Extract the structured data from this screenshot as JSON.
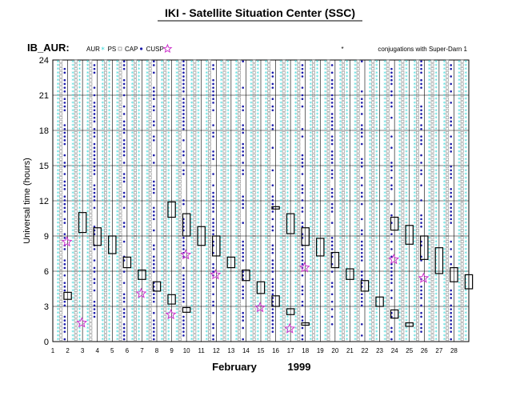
{
  "page_title": "IKI - Satellite Situation Center (SSC)",
  "panel_label": "IB_AUR:",
  "legend": {
    "items": [
      {
        "label": "AUR",
        "marker": "*",
        "color": "#33d6d6"
      },
      {
        "label": "PS",
        "marker": "square",
        "color": "#999999"
      },
      {
        "label": "CAP",
        "marker": "dot",
        "color": "#1a1aaa"
      },
      {
        "label": "CUSP",
        "marker": "star",
        "color": "#cc33cc"
      }
    ],
    "conjugation_note": "conjugations with Super-Darn 1"
  },
  "chart_data": {
    "type": "scatter",
    "title": "IKI - Satellite Situation Center (SSC)",
    "xlabel": "February 1999",
    "xlabel_parts": [
      "February",
      "1999"
    ],
    "ylabel": "Universal time (hours)",
    "x_ticks": [
      1,
      2,
      3,
      4,
      5,
      6,
      7,
      8,
      9,
      10,
      11,
      12,
      13,
      14,
      15,
      16,
      17,
      18,
      19,
      20,
      21,
      22,
      23,
      24,
      25,
      26,
      27,
      28
    ],
    "y_ticks": [
      0,
      3,
      6,
      9,
      12,
      15,
      18,
      21,
      24
    ],
    "xlim": [
      1,
      29
    ],
    "ylim": [
      0,
      24
    ],
    "grid": true,
    "orbit_offsets": [
      0.35,
      0.55,
      0.8
    ],
    "conjugation_boxes": [
      {
        "day": 2,
        "start": 3.6,
        "end": 4.2,
        "boxed": true
      },
      {
        "day": 3,
        "start": 9.3,
        "end": 11.0,
        "boxed": true
      },
      {
        "day": 4,
        "start": 8.2,
        "end": 9.7,
        "boxed": true
      },
      {
        "day": 5,
        "start": 7.5,
        "end": 9.0,
        "boxed": true
      },
      {
        "day": 6,
        "start": 6.3,
        "end": 7.2,
        "boxed": true
      },
      {
        "day": 7,
        "start": 5.3,
        "end": 6.1,
        "boxed": true
      },
      {
        "day": 8,
        "start": 4.3,
        "end": 5.1,
        "boxed": true
      },
      {
        "day": 9,
        "start": 3.2,
        "end": 4.0,
        "boxed": true
      },
      {
        "day": 9,
        "start": 10.6,
        "end": 11.9,
        "boxed": true
      },
      {
        "day": 10,
        "start": 9.0,
        "end": 10.9,
        "boxed": true
      },
      {
        "day": 10,
        "start": 2.5,
        "end": 2.9,
        "boxed": true
      },
      {
        "day": 11,
        "start": 8.2,
        "end": 9.8,
        "boxed": true
      },
      {
        "day": 12,
        "start": 7.3,
        "end": 9.0,
        "boxed": true
      },
      {
        "day": 13,
        "start": 6.3,
        "end": 7.2,
        "boxed": true
      },
      {
        "day": 14,
        "start": 5.2,
        "end": 6.1,
        "boxed": true
      },
      {
        "day": 15,
        "start": 4.1,
        "end": 5.1,
        "boxed": true
      },
      {
        "day": 16,
        "start": 3.0,
        "end": 3.9,
        "boxed": true
      },
      {
        "day": 16,
        "start": 11.3,
        "end": 11.5,
        "boxed": true
      },
      {
        "day": 17,
        "start": 9.2,
        "end": 10.9,
        "boxed": true
      },
      {
        "day": 17,
        "start": 2.3,
        "end": 2.8,
        "boxed": true
      },
      {
        "day": 18,
        "start": 8.2,
        "end": 9.7,
        "boxed": true
      },
      {
        "day": 18,
        "start": 1.4,
        "end": 1.6,
        "boxed": true
      },
      {
        "day": 19,
        "start": 7.3,
        "end": 8.8,
        "boxed": true
      },
      {
        "day": 20,
        "start": 6.3,
        "end": 7.6,
        "boxed": true
      },
      {
        "day": 21,
        "start": 5.3,
        "end": 6.2,
        "boxed": true
      },
      {
        "day": 22,
        "start": 4.3,
        "end": 5.2,
        "boxed": true
      },
      {
        "day": 23,
        "start": 3.0,
        "end": 3.8,
        "boxed": true
      },
      {
        "day": 24,
        "start": 9.5,
        "end": 10.6,
        "boxed": true
      },
      {
        "day": 24,
        "start": 2.0,
        "end": 2.7,
        "boxed": true
      },
      {
        "day": 25,
        "start": 8.3,
        "end": 9.9,
        "boxed": true
      },
      {
        "day": 25,
        "start": 1.3,
        "end": 1.6,
        "boxed": true
      },
      {
        "day": 26,
        "start": 7.0,
        "end": 9.0,
        "boxed": true
      },
      {
        "day": 27,
        "start": 5.8,
        "end": 8.0,
        "boxed": true
      },
      {
        "day": 28,
        "start": 5.1,
        "end": 6.3,
        "boxed": true
      },
      {
        "day": 29,
        "start": 4.5,
        "end": 5.7,
        "boxed": true
      }
    ],
    "cusp_events": [
      {
        "day": 2,
        "ut": 8.5
      },
      {
        "day": 3,
        "ut": 1.6
      },
      {
        "day": 7,
        "ut": 4.1
      },
      {
        "day": 9,
        "ut": 2.3
      },
      {
        "day": 10,
        "ut": 7.4
      },
      {
        "day": 12,
        "ut": 5.7
      },
      {
        "day": 15,
        "ut": 2.9
      },
      {
        "day": 17,
        "ut": 1.1
      },
      {
        "day": 18,
        "ut": 6.3
      },
      {
        "day": 24,
        "ut": 7.0
      },
      {
        "day": 26,
        "ut": 5.4
      }
    ]
  }
}
